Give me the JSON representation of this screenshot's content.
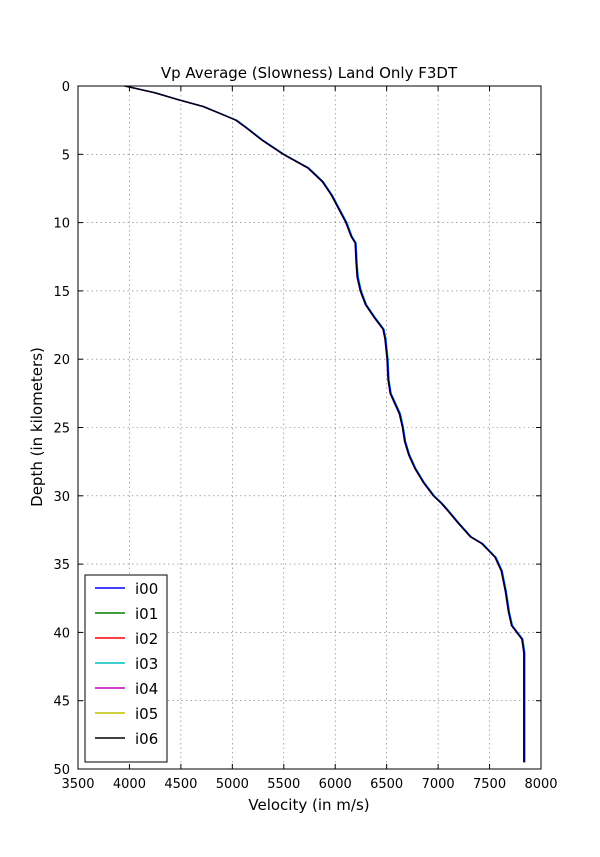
{
  "chart_data": {
    "type": "line",
    "title": "Vp Average (Slowness) Land Only F3DT",
    "xlabel": "Velocity (in m/s)",
    "ylabel": "Depth (in kilometers)",
    "xlim": [
      3500,
      8000
    ],
    "ylim": [
      50,
      0
    ],
    "y_inverted": true,
    "xticks": [
      "3500",
      "4000",
      "4500",
      "5000",
      "5500",
      "6000",
      "6500",
      "7000",
      "7500",
      "8000"
    ],
    "yticks": [
      "0",
      "5",
      "10",
      "15",
      "20",
      "25",
      "30",
      "35",
      "40",
      "45",
      "50"
    ],
    "grid": true,
    "legend_position": "lower-left",
    "depth": [
      0,
      0.5,
      1.0,
      1.5,
      2.0,
      2.5,
      3.0,
      4.0,
      5.0,
      6.0,
      7.0,
      8.0,
      9.0,
      10.0,
      11.0,
      11.5,
      13.0,
      14.0,
      15.0,
      16.0,
      17.0,
      17.8,
      18.5,
      20.0,
      21.5,
      22.5,
      23.0,
      24.0,
      25.0,
      26.0,
      27.0,
      28.0,
      29.0,
      30.0,
      30.5,
      31.0,
      32.0,
      33.0,
      33.5,
      34.5,
      35.5,
      37.0,
      38.5,
      39.5,
      40.5,
      41.5,
      43.0,
      45.0,
      47.0,
      49.5
    ],
    "series": [
      {
        "name": "i00",
        "color": "#0000ff",
        "offset": 10,
        "values": [
          3960,
          4250,
          4480,
          4720,
          4880,
          5040,
          5130,
          5300,
          5500,
          5740,
          5880,
          5970,
          6040,
          6110,
          6160,
          6200,
          6210,
          6220,
          6250,
          6300,
          6390,
          6470,
          6490,
          6510,
          6520,
          6540,
          6570,
          6630,
          6660,
          6680,
          6720,
          6780,
          6860,
          6960,
          7030,
          7090,
          7200,
          7320,
          7430,
          7560,
          7620,
          7660,
          7690,
          7720,
          7820,
          7840,
          7840,
          7840,
          7840,
          7840
        ]
      },
      {
        "name": "i01",
        "color": "#008000",
        "offset": 0,
        "values": []
      },
      {
        "name": "i02",
        "color": "#ff0000",
        "offset": -4,
        "values": []
      },
      {
        "name": "i03",
        "color": "#00bfbf",
        "offset": 4,
        "values": []
      },
      {
        "name": "i04",
        "color": "#bf00bf",
        "offset": -8,
        "values": []
      },
      {
        "name": "i05",
        "color": "#bfbf00",
        "offset": -2,
        "values": []
      },
      {
        "name": "i06",
        "color": "#000000",
        "offset": -6,
        "values": []
      }
    ]
  }
}
